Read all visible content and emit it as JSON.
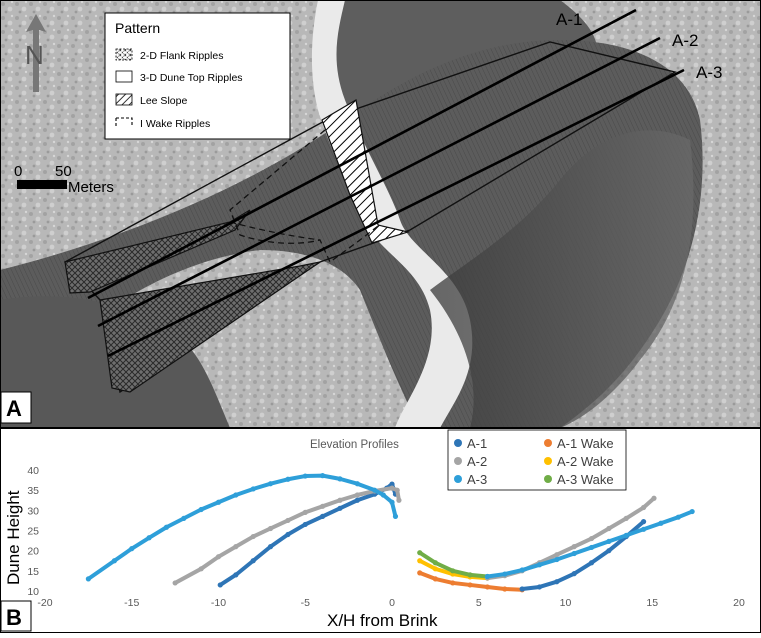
{
  "panel_a": {
    "label": "A",
    "north_label": "N",
    "scale_bar": {
      "tick_start": "0",
      "tick_end": "50",
      "unit": "Meters"
    },
    "legend": {
      "title": "Pattern",
      "items": [
        {
          "label": "2-D Flank Ripples",
          "pattern": "crosshatch"
        },
        {
          "label": "3-D Dune Top Ripples",
          "pattern": "none"
        },
        {
          "label": "Lee Slope",
          "pattern": "diagonal"
        },
        {
          "label": "I Wake Ripples",
          "pattern": "dashed"
        }
      ]
    },
    "transects": [
      {
        "label": "A-1"
      },
      {
        "label": "A-2"
      },
      {
        "label": "A-3"
      }
    ]
  },
  "panel_b": {
    "label": "B",
    "chart_data": {
      "type": "scatter",
      "title": "Elevation Profiles",
      "xlabel": "X/H from Brink",
      "ylabel": "Dune Height",
      "xlim": [
        -20,
        20
      ],
      "ylim": [
        10,
        40
      ],
      "xticks": [
        -20,
        -15,
        -10,
        -5,
        0,
        5,
        10,
        15,
        20
      ],
      "yticks": [
        10,
        15,
        20,
        25,
        30,
        35,
        40
      ],
      "grid": false,
      "legend_position": "top-right",
      "series": [
        {
          "name": "A-1",
          "color": "#2e75b6",
          "x": [
            -9.9,
            -9,
            -8,
            -7,
            -6,
            -5,
            -4,
            -3,
            -2,
            -1,
            -0.3,
            0,
            0.2
          ],
          "y": [
            11.5,
            14,
            17.5,
            21,
            24,
            26.5,
            28.5,
            30.5,
            32.5,
            34,
            35.5,
            36.5,
            34
          ]
        },
        {
          "name": "A-2",
          "color": "#a5a5a5",
          "x": [
            -12.5,
            -11,
            -10,
            -9,
            -8,
            -7,
            -6,
            -5,
            -4,
            -3,
            -2,
            -1,
            0,
            0.3,
            0.4
          ],
          "y": [
            12,
            15.5,
            18.5,
            21,
            23.5,
            25.5,
            27.5,
            29.5,
            31,
            32.5,
            33.8,
            34.8,
            35.5,
            35,
            32.5
          ]
        },
        {
          "name": "A-3",
          "color": "#2e9fd9",
          "x": [
            -17.5,
            -16,
            -15,
            -14,
            -13,
            -12,
            -11,
            -10,
            -9,
            -8,
            -7,
            -6,
            -5,
            -4,
            -3,
            -2,
            -1,
            -0.5,
            0,
            0.2
          ],
          "y": [
            13,
            17.5,
            20.5,
            23.2,
            25.8,
            28,
            30.2,
            32,
            33.8,
            35.3,
            36.6,
            37.7,
            38.5,
            38.6,
            37.8,
            36.6,
            35,
            33.8,
            32,
            28.5
          ]
        },
        {
          "name": "A-1 Wake",
          "color": "#ed7d31",
          "x": [
            1.6,
            2.5,
            3.5,
            4.5,
            5.5,
            6.5,
            7.5
          ],
          "y": [
            14.5,
            13,
            12,
            11.5,
            11,
            10.5,
            10.3
          ]
        },
        {
          "name": "A-2 Wake",
          "color": "#ffc000",
          "x": [
            1.6,
            2.5,
            3.5,
            4.5,
            5.5
          ],
          "y": [
            17.5,
            15.5,
            14.2,
            13.5,
            13.2
          ]
        },
        {
          "name": "A-3 Wake",
          "color": "#70ad47",
          "x": [
            1.6,
            2.5,
            3.5,
            4.5,
            5.5
          ],
          "y": [
            19.5,
            17,
            15,
            14,
            13.6
          ]
        },
        {
          "name": "A-1",
          "color": "#2e75b6",
          "legend": false,
          "x": [
            7.5,
            8.5,
            9.5,
            10.5,
            11.5,
            12.5,
            13.5,
            14.5
          ],
          "y": [
            10.5,
            11,
            12.3,
            14.3,
            17,
            20,
            23.5,
            27.2
          ]
        },
        {
          "name": "A-2",
          "color": "#a5a5a5",
          "legend": false,
          "x": [
            5.5,
            6.5,
            7.5,
            8.5,
            9.5,
            10.5,
            11.5,
            12.5,
            13.5,
            14.5,
            15.1
          ],
          "y": [
            13.2,
            13.8,
            15,
            17,
            19,
            21,
            23,
            25.5,
            28,
            30.7,
            33
          ]
        },
        {
          "name": "A-3",
          "color": "#2e9fd9",
          "legend": false,
          "x": [
            5.5,
            6.5,
            7.5,
            8.5,
            9.5,
            10.5,
            11.5,
            12.5,
            13.5,
            14.5,
            15.5,
            16.5,
            17.3
          ],
          "y": [
            13.6,
            14.2,
            15.2,
            16.5,
            17.8,
            19.3,
            20.8,
            22.3,
            23.8,
            25.3,
            26.8,
            28.3,
            29.7
          ]
        }
      ]
    }
  }
}
